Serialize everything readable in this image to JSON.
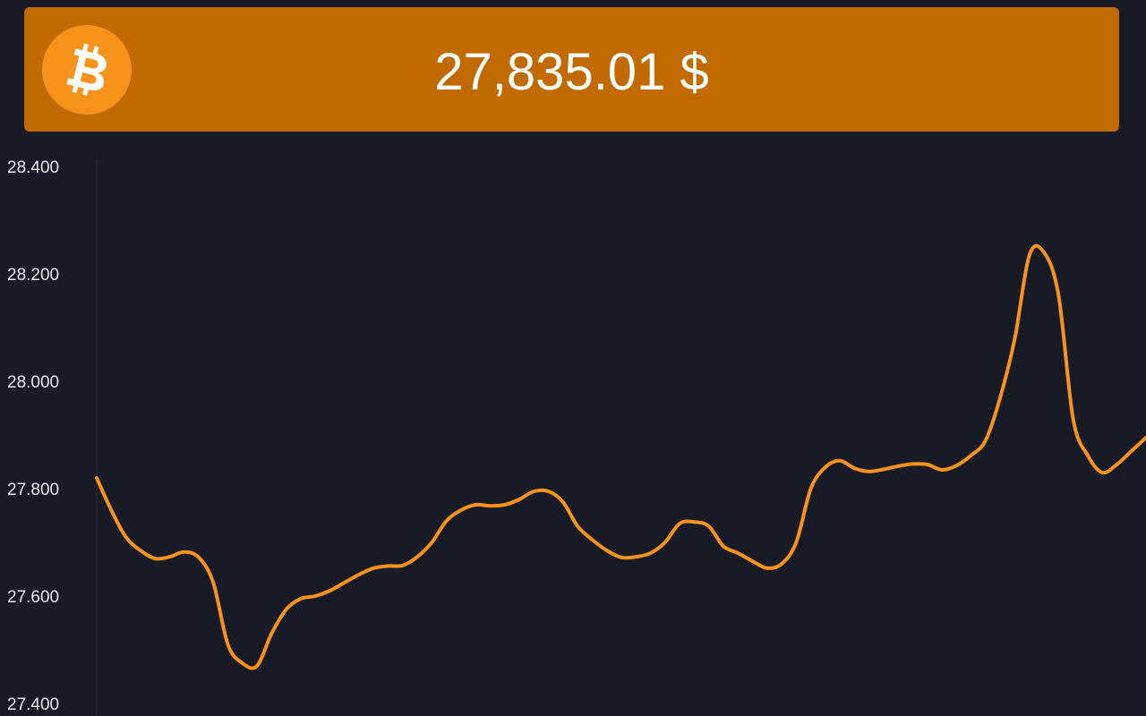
{
  "header": {
    "price": "27,835.01 $",
    "coin_icon": "bitcoin-icon",
    "accent_color": "#c06a00",
    "coin_color": "#f7931a"
  },
  "chart_data": {
    "type": "line",
    "title": "",
    "xlabel": "",
    "ylabel": "",
    "ylim": [
      27400,
      28400
    ],
    "y_ticks": [
      "28.400",
      "28.200",
      "28.000",
      "27.800",
      "27.600",
      "27.400"
    ],
    "y_tick_values": [
      28400,
      28200,
      28000,
      27800,
      27600,
      27400
    ],
    "grid": false,
    "line_color": "#f7931a",
    "series": [
      {
        "values": [
          27820,
          27760,
          27710,
          27685,
          27670,
          27673,
          27682,
          27672,
          27625,
          27510,
          27475,
          27470,
          27530,
          27575,
          27595,
          27600,
          27610,
          27625,
          27640,
          27652,
          27656,
          27657,
          27673,
          27700,
          27740,
          27760,
          27770,
          27768,
          27770,
          27780,
          27795,
          27795,
          27775,
          27730,
          27705,
          27685,
          27672,
          27673,
          27680,
          27700,
          27735,
          27738,
          27730,
          27693,
          27680,
          27665,
          27652,
          27660,
          27700,
          27800,
          27840,
          27852,
          27838,
          27832,
          27836,
          27842,
          27846,
          27845,
          27835,
          27843,
          27862,
          27890,
          27970,
          28080,
          28235,
          28240,
          28160,
          27930,
          27862,
          27830,
          27845,
          27870,
          27895
        ]
      }
    ]
  }
}
